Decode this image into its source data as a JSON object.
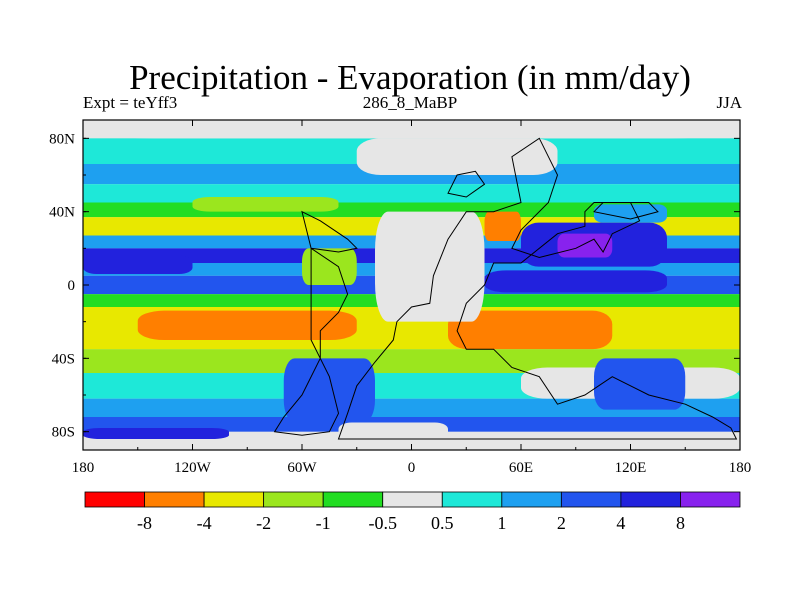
{
  "chart_data": {
    "type": "heatmap",
    "title": "Precipitation - Evaporation (in mm/day)",
    "subtitle_left": "Expt = teYff3",
    "subtitle_center": "286_8_MaBP",
    "subtitle_right": "JJA",
    "x_ticks": [
      {
        "value": -180,
        "label": "180"
      },
      {
        "value": -120,
        "label": "120W"
      },
      {
        "value": -60,
        "label": "60W"
      },
      {
        "value": 0,
        "label": "0"
      },
      {
        "value": 60,
        "label": "60E"
      },
      {
        "value": 120,
        "label": "120E"
      },
      {
        "value": 180,
        "label": "180"
      }
    ],
    "y_ticks": [
      {
        "value": 80,
        "label": "80N"
      },
      {
        "value": 40,
        "label": "40N"
      },
      {
        "value": 0,
        "label": "0"
      },
      {
        "value": -40,
        "label": "40S"
      },
      {
        "value": -80,
        "label": "80S"
      }
    ],
    "xlim": [
      -180,
      180
    ],
    "ylim": [
      -90,
      90
    ],
    "colorbar": {
      "colors": [
        "#ff0000",
        "#ff7f00",
        "#e8e800",
        "#9be61e",
        "#22dd22",
        "#e6e6e6",
        "#1ee8d8",
        "#1ea0f0",
        "#2255ee",
        "#2222dd",
        "#8822ee"
      ],
      "labels": [
        "-8",
        "-4",
        "-2",
        "-1",
        "-0.5",
        "0.5",
        "1",
        "2",
        "4",
        "8"
      ]
    },
    "bands": [
      {
        "lat_top": 80,
        "lat_bottom": 66,
        "color": "#1ee8d8"
      },
      {
        "lat_top": 66,
        "lat_bottom": 55,
        "color": "#1ea0f0"
      },
      {
        "lat_top": 55,
        "lat_bottom": 45,
        "color": "#1ee8d8"
      },
      {
        "lat_top": 45,
        "lat_bottom": 37,
        "color": "#22dd22"
      },
      {
        "lat_top": 37,
        "lat_bottom": 27,
        "color": "#e8e800"
      },
      {
        "lat_top": 27,
        "lat_bottom": 20,
        "color": "#1ea0f0"
      },
      {
        "lat_top": 20,
        "lat_bottom": 12,
        "color": "#2222dd"
      },
      {
        "lat_top": 12,
        "lat_bottom": 5,
        "color": "#1ea0f0"
      },
      {
        "lat_top": 5,
        "lat_bottom": -5,
        "color": "#2255ee"
      },
      {
        "lat_top": -5,
        "lat_bottom": -12,
        "color": "#22dd22"
      },
      {
        "lat_top": -12,
        "lat_bottom": -35,
        "color": "#e8e800"
      },
      {
        "lat_top": -35,
        "lat_bottom": -48,
        "color": "#9be61e"
      },
      {
        "lat_top": -48,
        "lat_bottom": -62,
        "color": "#1ee8d8"
      },
      {
        "lat_top": -62,
        "lat_bottom": -72,
        "color": "#1ea0f0"
      },
      {
        "lat_top": -72,
        "lat_bottom": -80,
        "color": "#2255ee"
      }
    ],
    "patches": [
      {
        "lon0": -180,
        "lon1": -120,
        "lat0": 6,
        "lat1": 16,
        "color": "#2222dd"
      },
      {
        "lon0": -120,
        "lon1": -40,
        "lat0": 40,
        "lat1": 48,
        "color": "#9be61e"
      },
      {
        "lon0": -150,
        "lon1": -30,
        "lat0": -30,
        "lat1": -14,
        "color": "#ff7f00"
      },
      {
        "lon0": 20,
        "lon1": 110,
        "lat0": -35,
        "lat1": -14,
        "color": "#ff7f00"
      },
      {
        "lon0": 60,
        "lon1": 140,
        "lat0": 10,
        "lat1": 34,
        "color": "#2222dd"
      },
      {
        "lon0": 80,
        "lon1": 110,
        "lat0": 15,
        "lat1": 28,
        "color": "#8822ee"
      },
      {
        "lon0": 100,
        "lon1": 140,
        "lat0": 34,
        "lat1": 44,
        "color": "#1ea0f0"
      },
      {
        "lon0": 40,
        "lon1": 60,
        "lat0": 24,
        "lat1": 40,
        "color": "#ff7f00"
      },
      {
        "lon0": 40,
        "lon1": 140,
        "lat0": -4,
        "lat1": 8,
        "color": "#2222dd"
      },
      {
        "lon0": -30,
        "lon1": 80,
        "lat0": 60,
        "lat1": 80,
        "color": "#e6e6e6"
      },
      {
        "lon0": -20,
        "lon1": 40,
        "lat0": -20,
        "lat1": 40,
        "color": "#e6e6e6"
      },
      {
        "lon0": -60,
        "lon1": -30,
        "lat0": 0,
        "lat1": 20,
        "color": "#9be61e"
      },
      {
        "lon0": -70,
        "lon1": -20,
        "lat0": -75,
        "lat1": -40,
        "color": "#2255ee"
      },
      {
        "lon0": -40,
        "lon1": 20,
        "lat0": -85,
        "lat1": -75,
        "color": "#e6e6e6"
      },
      {
        "lon0": 60,
        "lon1": 180,
        "lat0": -62,
        "lat1": -45,
        "color": "#e6e6e6"
      },
      {
        "lon0": 100,
        "lon1": 150,
        "lat0": -68,
        "lat1": -40,
        "color": "#2255ee"
      },
      {
        "lon0": -180,
        "lon1": 180,
        "lat0": -90,
        "lat1": -84,
        "color": "#e6e6e6"
      },
      {
        "lon0": -180,
        "lon1": 180,
        "lat0": 80,
        "lat1": 90,
        "color": "#e6e6e6"
      },
      {
        "lon0": -180,
        "lon1": -100,
        "lat0": -84,
        "lat1": -78,
        "color": "#2222dd"
      }
    ],
    "outlines": [
      [
        [
          -40,
          -84
        ],
        [
          -35,
          -70
        ],
        [
          -30,
          -55
        ],
        [
          -20,
          -42
        ],
        [
          -10,
          -30
        ],
        [
          -8,
          -20
        ],
        [
          0,
          -12
        ],
        [
          10,
          -10
        ],
        [
          12,
          5
        ],
        [
          20,
          25
        ],
        [
          30,
          40
        ],
        [
          45,
          40
        ],
        [
          60,
          45
        ],
        [
          55,
          70
        ],
        [
          70,
          80
        ],
        [
          75,
          70
        ],
        [
          80,
          60
        ],
        [
          75,
          45
        ],
        [
          60,
          30
        ],
        [
          55,
          20
        ],
        [
          70,
          15
        ],
        [
          90,
          20
        ],
        [
          100,
          25
        ],
        [
          105,
          18
        ],
        [
          110,
          28
        ],
        [
          125,
          35
        ],
        [
          120,
          45
        ],
        [
          100,
          45
        ],
        [
          95,
          40
        ],
        [
          95,
          32
        ],
        [
          80,
          28
        ],
        [
          60,
          12
        ],
        [
          45,
          12
        ],
        [
          40,
          0
        ],
        [
          30,
          -10
        ],
        [
          25,
          -25
        ],
        [
          30,
          -35
        ],
        [
          45,
          -35
        ],
        [
          55,
          -45
        ],
        [
          70,
          -50
        ],
        [
          80,
          -65
        ],
        [
          95,
          -60
        ],
        [
          110,
          -50
        ],
        [
          130,
          -60
        ],
        [
          150,
          -65
        ],
        [
          165,
          -72
        ],
        [
          175,
          -78
        ],
        [
          178,
          -84
        ],
        [
          -40,
          -84
        ]
      ],
      [
        [
          -55,
          20
        ],
        [
          -40,
          10
        ],
        [
          -35,
          -5
        ],
        [
          -40,
          -15
        ],
        [
          -50,
          -25
        ],
        [
          -50,
          -40
        ],
        [
          -60,
          -60
        ],
        [
          -70,
          -72
        ],
        [
          -75,
          -80
        ],
        [
          -60,
          -82
        ],
        [
          -45,
          -80
        ],
        [
          -40,
          -70
        ],
        [
          -45,
          -50
        ],
        [
          -55,
          -30
        ],
        [
          -55,
          0
        ],
        [
          -55,
          20
        ]
      ],
      [
        [
          -60,
          40
        ],
        [
          -50,
          35
        ],
        [
          -35,
          25
        ],
        [
          -30,
          20
        ],
        [
          -40,
          18
        ],
        [
          -55,
          20
        ],
        [
          -60,
          40
        ]
      ],
      [
        [
          20,
          50
        ],
        [
          25,
          60
        ],
        [
          35,
          62
        ],
        [
          40,
          55
        ],
        [
          30,
          48
        ],
        [
          20,
          50
        ]
      ],
      [
        [
          100,
          40
        ],
        [
          105,
          45
        ],
        [
          130,
          45
        ],
        [
          135,
          40
        ],
        [
          120,
          36
        ],
        [
          100,
          40
        ]
      ]
    ]
  }
}
